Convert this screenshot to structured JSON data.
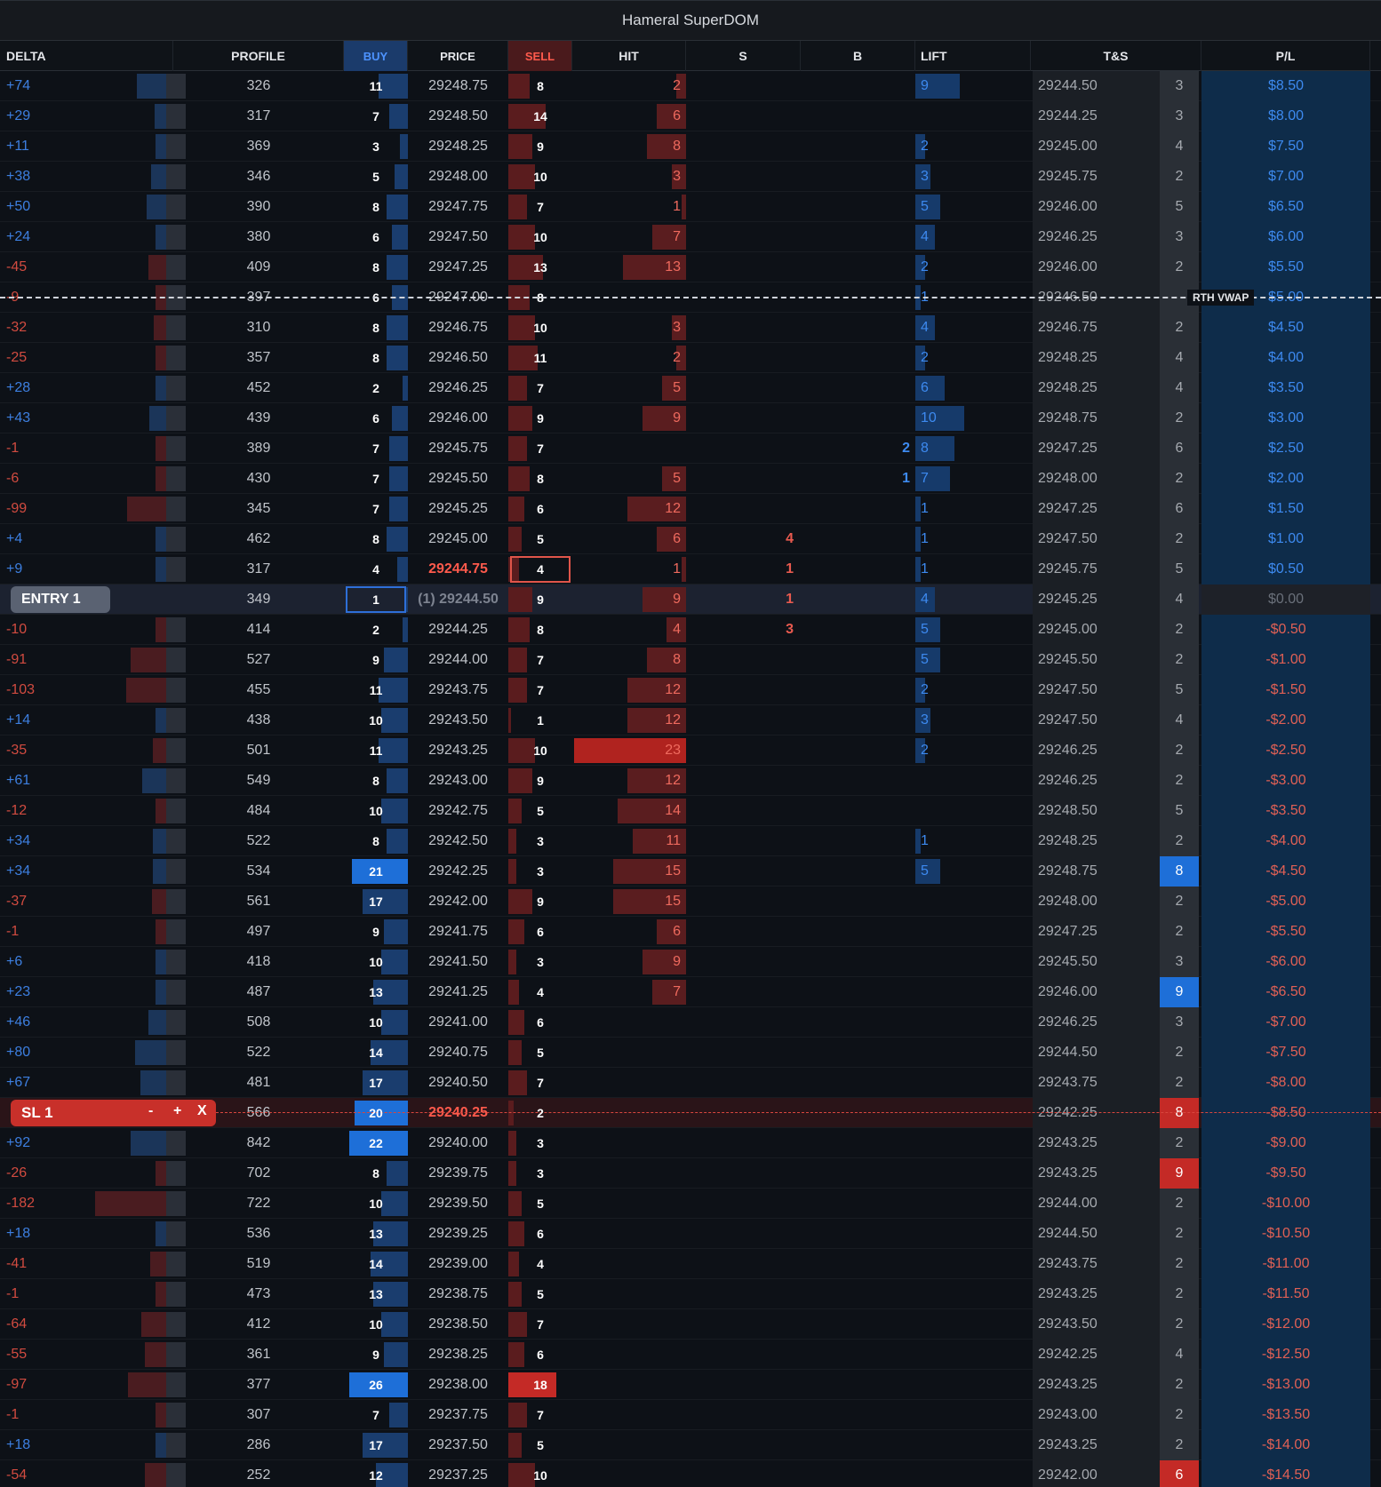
{
  "window": {
    "title": "Hameral SuperDOM"
  },
  "columns": [
    "DELTA",
    "PROFILE",
    "BUY",
    "PRICE",
    "SELL",
    "HIT",
    "S",
    "B",
    "LIFT",
    "T&S",
    "P/L"
  ],
  "markers": {
    "vwap_label": "RTH VWAP",
    "entry_label": "ENTRY 1",
    "sl_label": "SL 1",
    "sl_minus": "-",
    "sl_plus": "+",
    "sl_close": "X"
  },
  "colors": {
    "blue_accent": "#2e6fd8",
    "red_accent": "#c0312b",
    "pl_background": "#0e2c4a"
  },
  "rows": [
    {
      "delta": "+74",
      "profile": "326",
      "buy": "11",
      "price": "29248.75",
      "sell": "8",
      "hit": "2",
      "s": "",
      "b": "",
      "lift": "9",
      "ts_price": "29244.50",
      "ts_qty": "3",
      "pl": "$8.50"
    },
    {
      "delta": "+29",
      "profile": "317",
      "buy": "7",
      "price": "29248.50",
      "sell": "14",
      "hit": "6",
      "s": "",
      "b": "",
      "lift": "",
      "ts_price": "29244.25",
      "ts_qty": "3",
      "pl": "$8.00"
    },
    {
      "delta": "+11",
      "profile": "369",
      "buy": "3",
      "price": "29248.25",
      "sell": "9",
      "hit": "8",
      "s": "",
      "b": "",
      "lift": "2",
      "ts_price": "29245.00",
      "ts_qty": "4",
      "pl": "$7.50"
    },
    {
      "delta": "+38",
      "profile": "346",
      "buy": "5",
      "price": "29248.00",
      "sell": "10",
      "hit": "3",
      "s": "",
      "b": "",
      "lift": "3",
      "ts_price": "29245.75",
      "ts_qty": "2",
      "pl": "$7.00"
    },
    {
      "delta": "+50",
      "profile": "390",
      "buy": "8",
      "price": "29247.75",
      "sell": "7",
      "hit": "1",
      "s": "",
      "b": "",
      "lift": "5",
      "ts_price": "29246.00",
      "ts_qty": "5",
      "pl": "$6.50"
    },
    {
      "delta": "+24",
      "profile": "380",
      "buy": "6",
      "price": "29247.50",
      "sell": "10",
      "hit": "7",
      "s": "",
      "b": "",
      "lift": "4",
      "ts_price": "29246.25",
      "ts_qty": "3",
      "pl": "$6.00"
    },
    {
      "delta": "-45",
      "profile": "409",
      "buy": "8",
      "price": "29247.25",
      "sell": "13",
      "hit": "13",
      "s": "",
      "b": "",
      "lift": "2",
      "ts_price": "29246.00",
      "ts_qty": "2",
      "pl": "$5.50"
    },
    {
      "delta": "-9",
      "profile": "397",
      "buy": "6",
      "price": "29247.00",
      "sell": "8",
      "hit": "",
      "s": "",
      "b": "",
      "lift": "1",
      "ts_price": "29246.50",
      "ts_qty": "",
      "pl": "$5.00"
    },
    {
      "delta": "-32",
      "profile": "310",
      "buy": "8",
      "price": "29246.75",
      "sell": "10",
      "hit": "3",
      "s": "",
      "b": "",
      "lift": "4",
      "ts_price": "29246.75",
      "ts_qty": "2",
      "pl": "$4.50"
    },
    {
      "delta": "-25",
      "profile": "357",
      "buy": "8",
      "price": "29246.50",
      "sell": "11",
      "hit": "2",
      "s": "",
      "b": "",
      "lift": "2",
      "ts_price": "29248.25",
      "ts_qty": "4",
      "pl": "$4.00"
    },
    {
      "delta": "+28",
      "profile": "452",
      "buy": "2",
      "price": "29246.25",
      "sell": "7",
      "hit": "5",
      "s": "",
      "b": "",
      "lift": "6",
      "ts_price": "29248.25",
      "ts_qty": "4",
      "pl": "$3.50"
    },
    {
      "delta": "+43",
      "profile": "439",
      "buy": "6",
      "price": "29246.00",
      "sell": "9",
      "hit": "9",
      "s": "",
      "b": "",
      "lift": "10",
      "ts_price": "29248.75",
      "ts_qty": "2",
      "pl": "$3.00"
    },
    {
      "delta": "-1",
      "profile": "389",
      "buy": "7",
      "price": "29245.75",
      "sell": "7",
      "hit": "",
      "s": "",
      "b": "2",
      "lift": "8",
      "ts_price": "29247.25",
      "ts_qty": "6",
      "pl": "$2.50"
    },
    {
      "delta": "-6",
      "profile": "430",
      "buy": "7",
      "price": "29245.50",
      "sell": "8",
      "hit": "5",
      "s": "",
      "b": "1",
      "lift": "7",
      "ts_price": "29248.00",
      "ts_qty": "2",
      "pl": "$2.00"
    },
    {
      "delta": "-99",
      "profile": "345",
      "buy": "7",
      "price": "29245.25",
      "sell": "6",
      "hit": "12",
      "s": "",
      "b": "",
      "lift": "1",
      "ts_price": "29247.25",
      "ts_qty": "6",
      "pl": "$1.50"
    },
    {
      "delta": "+4",
      "profile": "462",
      "buy": "8",
      "price": "29245.00",
      "sell": "5",
      "hit": "6",
      "s": "4",
      "b": "",
      "lift": "1",
      "ts_price": "29247.50",
      "ts_qty": "2",
      "pl": "$1.00"
    },
    {
      "delta": "+9",
      "profile": "317",
      "buy": "4",
      "price": "29244.75",
      "sell": "4",
      "hit": "1",
      "s": "1",
      "b": "",
      "lift": "1",
      "ts_price": "29245.75",
      "ts_qty": "5",
      "pl": "$0.50"
    },
    {
      "delta": "",
      "profile": "349",
      "buy": "1",
      "price": "(1) 29244.50",
      "sell": "9",
      "hit": "9",
      "s": "1",
      "b": "",
      "lift": "4",
      "ts_price": "29245.25",
      "ts_qty": "4",
      "pl": "$0.00"
    },
    {
      "delta": "-10",
      "profile": "414",
      "buy": "2",
      "price": "29244.25",
      "sell": "8",
      "hit": "4",
      "s": "3",
      "b": "",
      "lift": "5",
      "ts_price": "29245.00",
      "ts_qty": "2",
      "pl": "-$0.50"
    },
    {
      "delta": "-91",
      "profile": "527",
      "buy": "9",
      "price": "29244.00",
      "sell": "7",
      "hit": "8",
      "s": "",
      "b": "",
      "lift": "5",
      "ts_price": "29245.50",
      "ts_qty": "2",
      "pl": "-$1.00"
    },
    {
      "delta": "-103",
      "profile": "455",
      "buy": "11",
      "price": "29243.75",
      "sell": "7",
      "hit": "12",
      "s": "",
      "b": "",
      "lift": "2",
      "ts_price": "29247.50",
      "ts_qty": "5",
      "pl": "-$1.50"
    },
    {
      "delta": "+14",
      "profile": "438",
      "buy": "10",
      "price": "29243.50",
      "sell": "1",
      "hit": "12",
      "s": "",
      "b": "",
      "lift": "3",
      "ts_price": "29247.50",
      "ts_qty": "4",
      "pl": "-$2.00"
    },
    {
      "delta": "-35",
      "profile": "501",
      "buy": "11",
      "price": "29243.25",
      "sell": "10",
      "hit": "23",
      "s": "",
      "b": "",
      "lift": "2",
      "ts_price": "29246.25",
      "ts_qty": "2",
      "pl": "-$2.50"
    },
    {
      "delta": "+61",
      "profile": "549",
      "buy": "8",
      "price": "29243.00",
      "sell": "9",
      "hit": "12",
      "s": "",
      "b": "",
      "lift": "",
      "ts_price": "29246.25",
      "ts_qty": "2",
      "pl": "-$3.00"
    },
    {
      "delta": "-12",
      "profile": "484",
      "buy": "10",
      "price": "29242.75",
      "sell": "5",
      "hit": "14",
      "s": "",
      "b": "",
      "lift": "",
      "ts_price": "29248.50",
      "ts_qty": "5",
      "pl": "-$3.50"
    },
    {
      "delta": "+34",
      "profile": "522",
      "buy": "8",
      "price": "29242.50",
      "sell": "3",
      "hit": "11",
      "s": "",
      "b": "",
      "lift": "1",
      "ts_price": "29248.25",
      "ts_qty": "2",
      "pl": "-$4.00"
    },
    {
      "delta": "+34",
      "profile": "534",
      "buy": "21",
      "price": "29242.25",
      "sell": "3",
      "hit": "15",
      "s": "",
      "b": "",
      "lift": "5",
      "ts_price": "29248.75",
      "ts_qty": "8",
      "pl": "-$4.50"
    },
    {
      "delta": "-37",
      "profile": "561",
      "buy": "17",
      "price": "29242.00",
      "sell": "9",
      "hit": "15",
      "s": "",
      "b": "",
      "lift": "",
      "ts_price": "29248.00",
      "ts_qty": "2",
      "pl": "-$5.00"
    },
    {
      "delta": "-1",
      "profile": "497",
      "buy": "9",
      "price": "29241.75",
      "sell": "6",
      "hit": "6",
      "s": "",
      "b": "",
      "lift": "",
      "ts_price": "29247.25",
      "ts_qty": "2",
      "pl": "-$5.50"
    },
    {
      "delta": "+6",
      "profile": "418",
      "buy": "10",
      "price": "29241.50",
      "sell": "3",
      "hit": "9",
      "s": "",
      "b": "",
      "lift": "",
      "ts_price": "29245.50",
      "ts_qty": "3",
      "pl": "-$6.00"
    },
    {
      "delta": "+23",
      "profile": "487",
      "buy": "13",
      "price": "29241.25",
      "sell": "4",
      "hit": "7",
      "s": "",
      "b": "",
      "lift": "",
      "ts_price": "29246.00",
      "ts_qty": "9",
      "pl": "-$6.50"
    },
    {
      "delta": "+46",
      "profile": "508",
      "buy": "10",
      "price": "29241.00",
      "sell": "6",
      "hit": "",
      "s": "",
      "b": "",
      "lift": "",
      "ts_price": "29246.25",
      "ts_qty": "3",
      "pl": "-$7.00"
    },
    {
      "delta": "+80",
      "profile": "522",
      "buy": "14",
      "price": "29240.75",
      "sell": "5",
      "hit": "",
      "s": "",
      "b": "",
      "lift": "",
      "ts_price": "29244.50",
      "ts_qty": "2",
      "pl": "-$7.50"
    },
    {
      "delta": "+67",
      "profile": "481",
      "buy": "17",
      "price": "29240.50",
      "sell": "7",
      "hit": "",
      "s": "",
      "b": "",
      "lift": "",
      "ts_price": "29243.75",
      "ts_qty": "2",
      "pl": "-$8.00"
    },
    {
      "delta": "",
      "profile": "566",
      "buy": "20",
      "price": "29240.25",
      "sell": "2",
      "hit": "",
      "s": "",
      "b": "",
      "lift": "",
      "ts_price": "29242.25",
      "ts_qty": "8",
      "pl": "-$8.50"
    },
    {
      "delta": "+92",
      "profile": "842",
      "buy": "22",
      "price": "29240.00",
      "sell": "3",
      "hit": "",
      "s": "",
      "b": "",
      "lift": "",
      "ts_price": "29243.25",
      "ts_qty": "2",
      "pl": "-$9.00"
    },
    {
      "delta": "-26",
      "profile": "702",
      "buy": "8",
      "price": "29239.75",
      "sell": "3",
      "hit": "",
      "s": "",
      "b": "",
      "lift": "",
      "ts_price": "29243.25",
      "ts_qty": "9",
      "pl": "-$9.50"
    },
    {
      "delta": "-182",
      "profile": "722",
      "buy": "10",
      "price": "29239.50",
      "sell": "5",
      "hit": "",
      "s": "",
      "b": "",
      "lift": "",
      "ts_price": "29244.00",
      "ts_qty": "2",
      "pl": "-$10.00"
    },
    {
      "delta": "+18",
      "profile": "536",
      "buy": "13",
      "price": "29239.25",
      "sell": "6",
      "hit": "",
      "s": "",
      "b": "",
      "lift": "",
      "ts_price": "29244.50",
      "ts_qty": "2",
      "pl": "-$10.50"
    },
    {
      "delta": "-41",
      "profile": "519",
      "buy": "14",
      "price": "29239.00",
      "sell": "4",
      "hit": "",
      "s": "",
      "b": "",
      "lift": "",
      "ts_price": "29243.75",
      "ts_qty": "2",
      "pl": "-$11.00"
    },
    {
      "delta": "-1",
      "profile": "473",
      "buy": "13",
      "price": "29238.75",
      "sell": "5",
      "hit": "",
      "s": "",
      "b": "",
      "lift": "",
      "ts_price": "29243.25",
      "ts_qty": "2",
      "pl": "-$11.50"
    },
    {
      "delta": "-64",
      "profile": "412",
      "buy": "10",
      "price": "29238.50",
      "sell": "7",
      "hit": "",
      "s": "",
      "b": "",
      "lift": "",
      "ts_price": "29243.50",
      "ts_qty": "2",
      "pl": "-$12.00"
    },
    {
      "delta": "-55",
      "profile": "361",
      "buy": "9",
      "price": "29238.25",
      "sell": "6",
      "hit": "",
      "s": "",
      "b": "",
      "lift": "",
      "ts_price": "29242.25",
      "ts_qty": "4",
      "pl": "-$12.50"
    },
    {
      "delta": "-97",
      "profile": "377",
      "buy": "26",
      "price": "29238.00",
      "sell": "18",
      "hit": "",
      "s": "",
      "b": "",
      "lift": "",
      "ts_price": "29243.25",
      "ts_qty": "2",
      "pl": "-$13.00"
    },
    {
      "delta": "-1",
      "profile": "307",
      "buy": "7",
      "price": "29237.75",
      "sell": "7",
      "hit": "",
      "s": "",
      "b": "",
      "lift": "",
      "ts_price": "29243.00",
      "ts_qty": "2",
      "pl": "-$13.50"
    },
    {
      "delta": "+18",
      "profile": "286",
      "buy": "17",
      "price": "29237.50",
      "sell": "5",
      "hit": "",
      "s": "",
      "b": "",
      "lift": "",
      "ts_price": "29243.25",
      "ts_qty": "2",
      "pl": "-$14.00"
    },
    {
      "delta": "-54",
      "profile": "252",
      "buy": "12",
      "price": "29237.25",
      "sell": "10",
      "hit": "",
      "s": "",
      "b": "",
      "lift": "",
      "ts_price": "29242.00",
      "ts_qty": "6",
      "pl": "-$14.50"
    }
  ]
}
